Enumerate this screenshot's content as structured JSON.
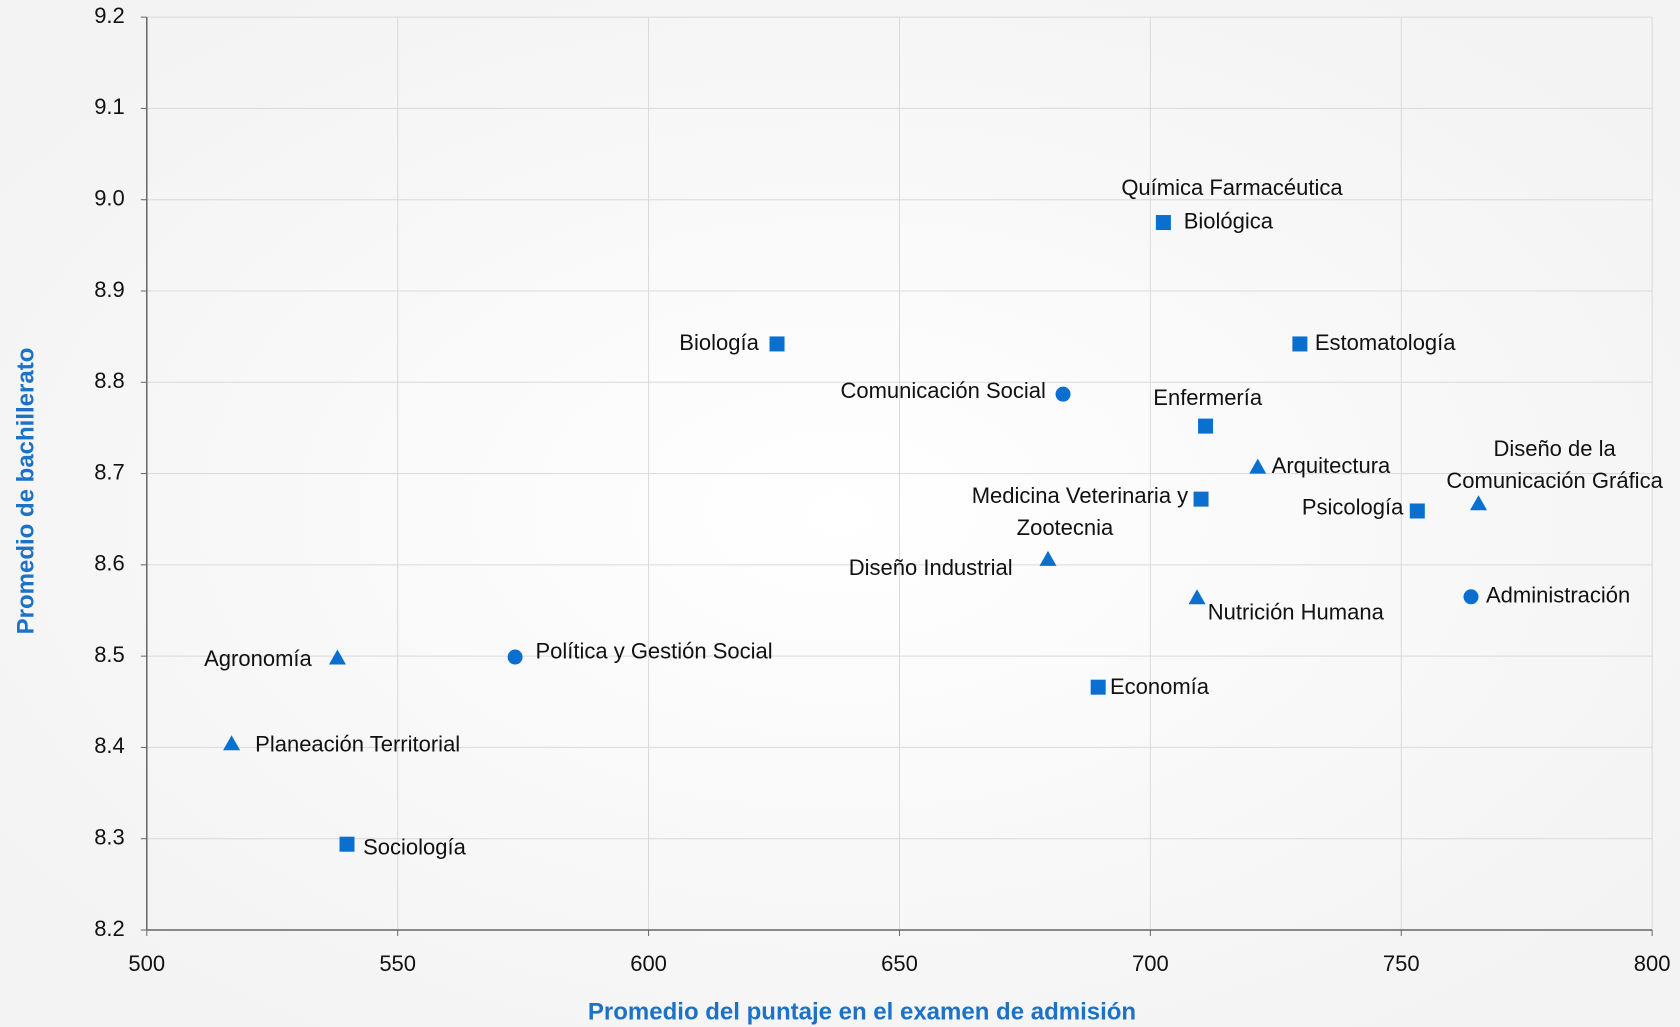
{
  "chart_data": {
    "type": "scatter",
    "x_label": "Promedio del puntaje en el examen de admisión",
    "y_label": "Promedio de bachillerato",
    "xlim": [
      500,
      800
    ],
    "xticks": [
      500,
      550,
      600,
      650,
      700,
      750,
      800
    ],
    "ylim": [
      8.2,
      9.2
    ],
    "yticks": [
      8.2,
      8.3,
      8.4,
      8.5,
      8.6,
      8.7,
      8.8,
      8.9,
      {
        "value": 9.0,
        "label": "9.0"
      },
      9.1,
      9.2
    ],
    "grid": true,
    "color": "#0a6fcf",
    "points": [
      {
        "label": [
          "Química Farmacéutica",
          "Biológica"
        ],
        "x": 702.6,
        "y": 8.975,
        "marker": "square"
      },
      {
        "label": [
          "Biología"
        ],
        "x": 625.6,
        "y": 8.842,
        "marker": "square"
      },
      {
        "label": [
          "Estomatología"
        ],
        "x": 729.8,
        "y": 8.842,
        "marker": "square"
      },
      {
        "label": [
          "Comunicación Social"
        ],
        "x": 682.6,
        "y": 8.787,
        "marker": "circle"
      },
      {
        "label": [
          "Enfermería"
        ],
        "x": 711.0,
        "y": 8.752,
        "marker": "square"
      },
      {
        "label": [
          "Arquitectura"
        ],
        "x": 721.4,
        "y": 8.707,
        "marker": "triangle"
      },
      {
        "label": [
          "Diseño de la",
          "Comunicación Gráfica"
        ],
        "x": 765.4,
        "y": 8.667,
        "marker": "triangle"
      },
      {
        "label": [
          "Medicina Veterinaria y",
          "Zootecnia"
        ],
        "x": 710.1,
        "y": 8.672,
        "marker": "square"
      },
      {
        "label": [
          "Psicología"
        ],
        "x": 753.2,
        "y": 8.659,
        "marker": "square"
      },
      {
        "label": [
          "Diseño Industrial"
        ],
        "x": 679.6,
        "y": 8.606,
        "marker": "triangle"
      },
      {
        "label": [
          "Nutrición Humana"
        ],
        "x": 709.3,
        "y": 8.564,
        "marker": "triangle"
      },
      {
        "label": [
          "Administración"
        ],
        "x": 763.9,
        "y": 8.565,
        "marker": "circle"
      },
      {
        "label": [
          "Agronomía"
        ],
        "x": 538.0,
        "y": 8.498,
        "marker": "triangle"
      },
      {
        "label": [
          "Política y Gestión Social"
        ],
        "x": 573.4,
        "y": 8.499,
        "marker": "circle"
      },
      {
        "label": [
          "Economía"
        ],
        "x": 689.6,
        "y": 8.466,
        "marker": "square"
      },
      {
        "label": [
          "Planeación Territorial"
        ],
        "x": 516.9,
        "y": 8.404,
        "marker": "triangle"
      },
      {
        "label": [
          "Sociología"
        ],
        "x": 539.9,
        "y": 8.294,
        "marker": "square"
      }
    ]
  }
}
